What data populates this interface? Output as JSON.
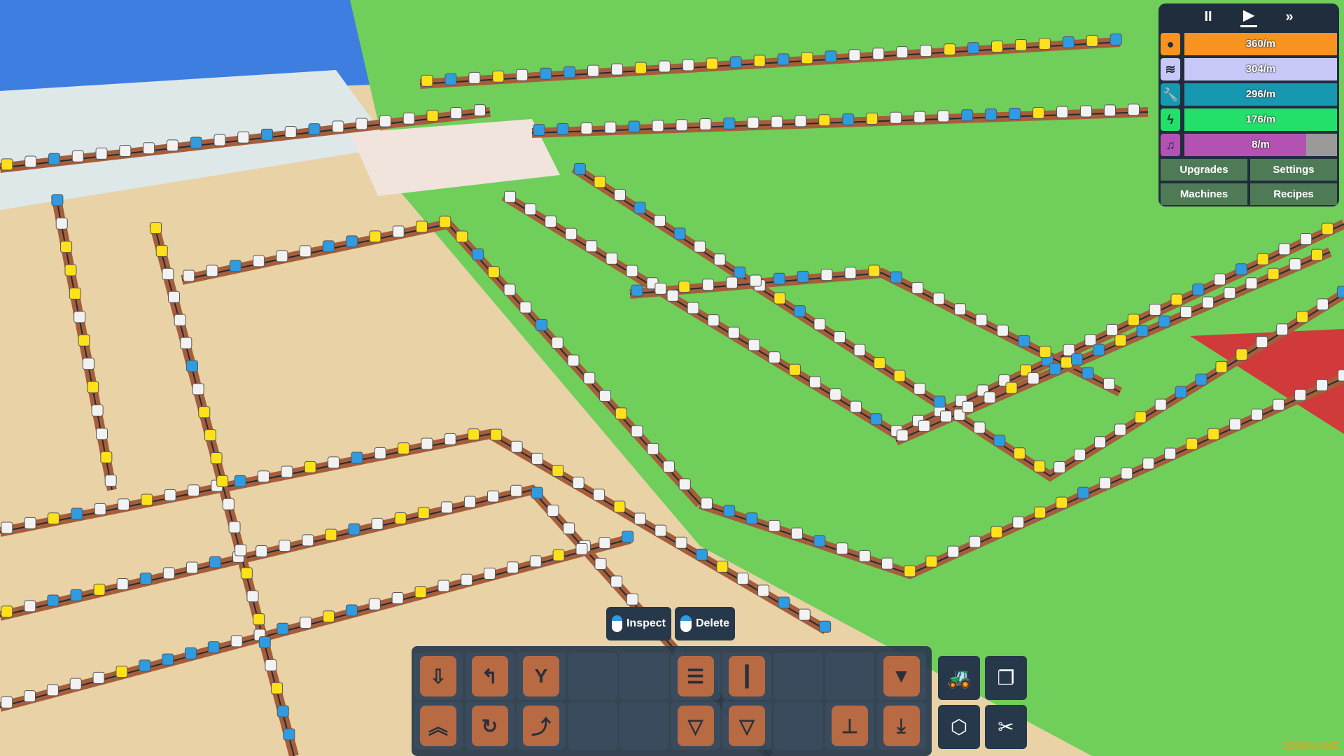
{
  "transport": {
    "pause": "II",
    "play": "▶",
    "fast_forward": "»",
    "active": "play"
  },
  "rates": [
    {
      "icon": "seed-icon",
      "glyph": "●",
      "value": "360/m",
      "color": "#f7931e",
      "fill": 1.0
    },
    {
      "icon": "waves-icon",
      "glyph": "≋",
      "value": "304/m",
      "color": "#c8c8f8",
      "fill": 1.0
    },
    {
      "icon": "wrench-icon",
      "glyph": "🔧",
      "value": "296/m",
      "color": "#1598b0",
      "fill": 1.0
    },
    {
      "icon": "lightning-icon",
      "glyph": "ϟ",
      "value": "176/m",
      "color": "#22e06a",
      "fill": 1.0
    },
    {
      "icon": "music-note-icon",
      "glyph": "♫",
      "value": "8/m",
      "color": "#b452b4",
      "fill": 0.8
    }
  ],
  "menu": {
    "upgrades": "Upgrades",
    "settings": "Settings",
    "machines": "Machines",
    "recipes": "Recipes"
  },
  "hints": {
    "inspect": "Inspect",
    "delete": "Delete"
  },
  "toolbar": {
    "row1": [
      {
        "icon": "extractor-icon",
        "glyph": "⇩"
      },
      {
        "icon": "turn-left-icon",
        "glyph": "↰"
      },
      {
        "icon": "splitter-icon",
        "glyph": "Y"
      },
      null,
      null,
      {
        "icon": "stacker-icon",
        "glyph": "☰"
      },
      {
        "icon": "pole-icon",
        "glyph": "┃"
      },
      null,
      null,
      {
        "icon": "filter-funnel-icon",
        "glyph": "▼"
      }
    ],
    "row2": [
      {
        "icon": "belt-up-icon",
        "glyph": "︽"
      },
      {
        "icon": "rotate-icon",
        "glyph": "↻"
      },
      {
        "icon": "curve-icon",
        "glyph": "⤴"
      },
      null,
      null,
      {
        "icon": "drill-cone-icon",
        "glyph": "▽"
      },
      {
        "icon": "drill-cone-2-icon",
        "glyph": "▽"
      },
      null,
      {
        "icon": "stamp-icon",
        "glyph": "⊥"
      },
      {
        "icon": "output-icon",
        "glyph": "⤓"
      }
    ],
    "side": [
      {
        "icon": "bulldozer-icon",
        "glyph": "🚜"
      },
      {
        "icon": "copy-icon",
        "glyph": "❐"
      },
      {
        "icon": "delete-cube-icon",
        "glyph": "⬡"
      },
      {
        "icon": "scissors-icon",
        "glyph": "✂"
      }
    ]
  },
  "watermark": "3DMGAME"
}
